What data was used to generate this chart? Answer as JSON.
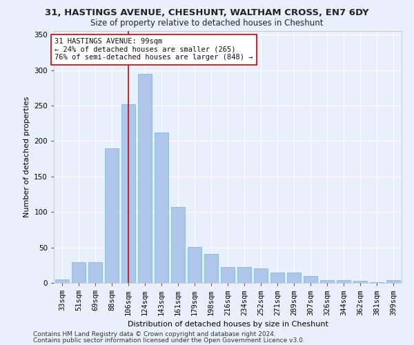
{
  "title1": "31, HASTINGS AVENUE, CHESHUNT, WALTHAM CROSS, EN7 6DY",
  "title2": "Size of property relative to detached houses in Cheshunt",
  "xlabel": "Distribution of detached houses by size in Cheshunt",
  "ylabel": "Number of detached properties",
  "categories": [
    "33sqm",
    "51sqm",
    "69sqm",
    "88sqm",
    "106sqm",
    "124sqm",
    "143sqm",
    "161sqm",
    "179sqm",
    "198sqm",
    "216sqm",
    "234sqm",
    "252sqm",
    "271sqm",
    "289sqm",
    "307sqm",
    "326sqm",
    "344sqm",
    "362sqm",
    "381sqm",
    "399sqm"
  ],
  "values": [
    5,
    29,
    29,
    190,
    252,
    295,
    212,
    107,
    51,
    41,
    22,
    22,
    20,
    15,
    15,
    10,
    4,
    4,
    3,
    1,
    4
  ],
  "bar_color": "#aec6e8",
  "bar_edge_color": "#7aafd4",
  "vline_color": "#cc0000",
  "vline_x_index": 4,
  "annotation_box_color": "#ffffff",
  "annotation_box_edge": "#cc0000",
  "property_label": "31 HASTINGS AVENUE: 99sqm",
  "annotation_line1": "← 24% of detached houses are smaller (265)",
  "annotation_line2": "76% of semi-detached houses are larger (848) →",
  "ylim": [
    0,
    355
  ],
  "footnote1": "Contains HM Land Registry data © Crown copyright and database right 2024.",
  "footnote2": "Contains public sector information licensed under the Open Government Licence v3.0.",
  "bg_color": "#eaf0fb",
  "grid_color": "#ffffff",
  "title1_fontsize": 9.5,
  "title2_fontsize": 8.5,
  "xlabel_fontsize": 8,
  "ylabel_fontsize": 8,
  "tick_fontsize": 7.5,
  "footnote_fontsize": 6.5,
  "annotation_fontsize": 7.5
}
